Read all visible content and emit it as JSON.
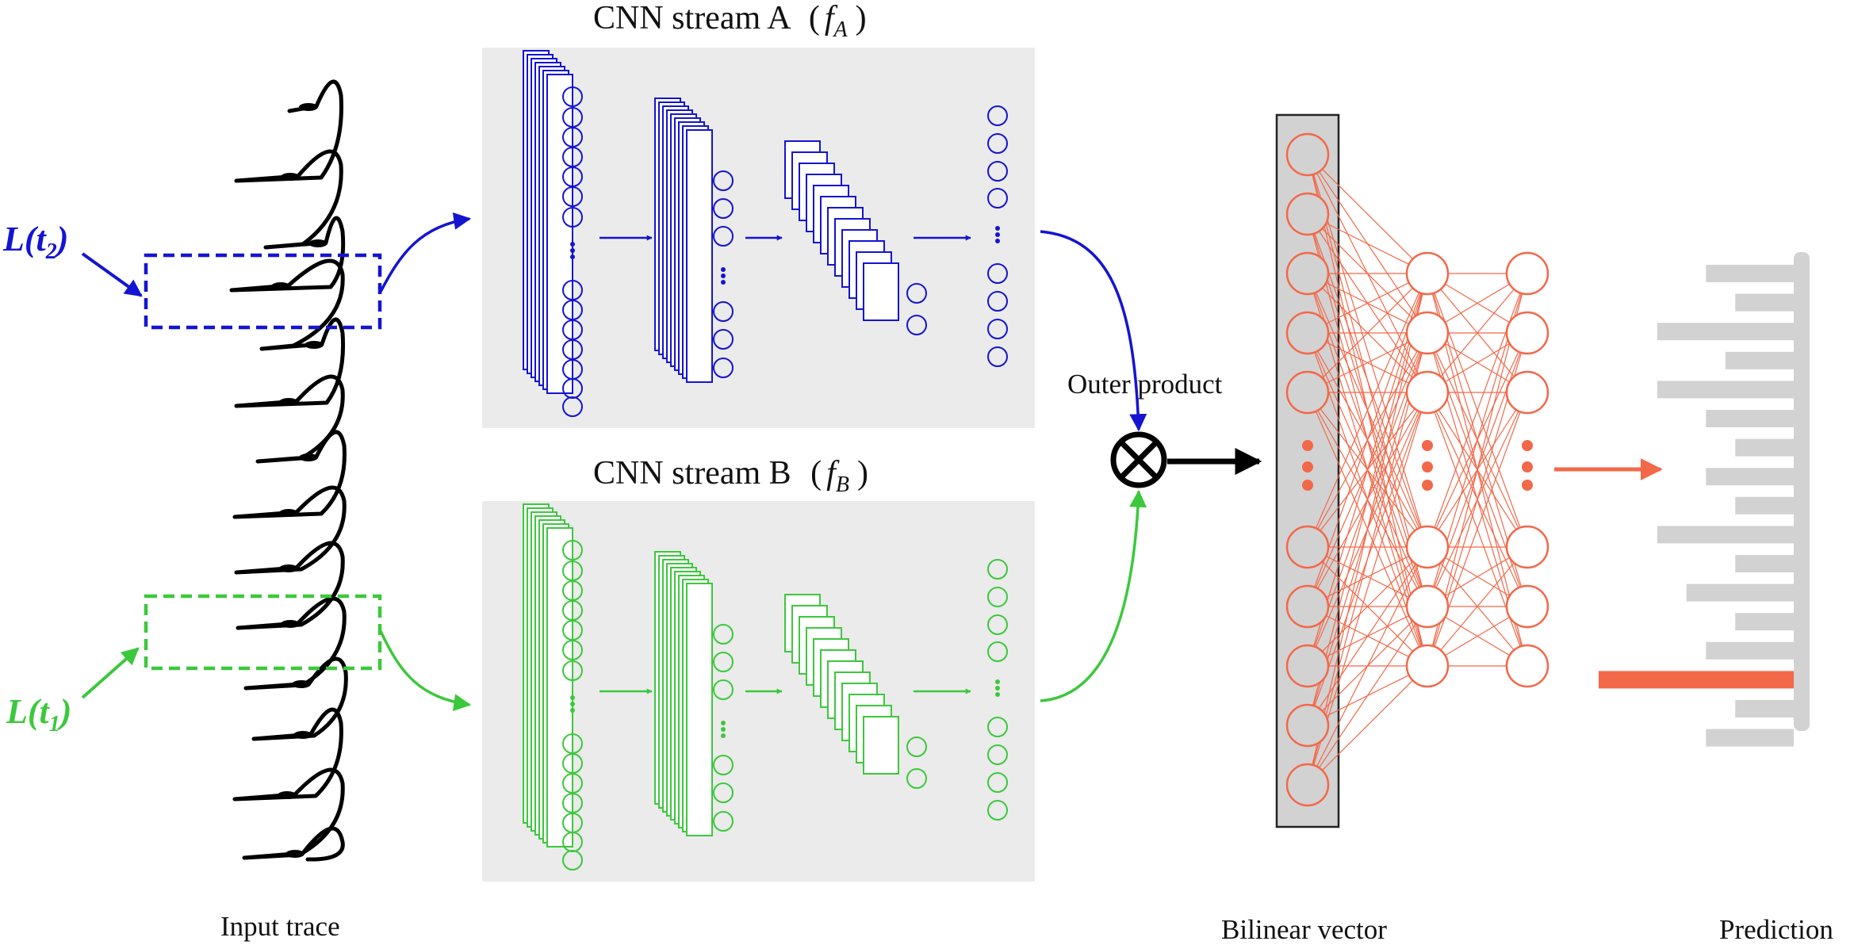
{
  "labels": {
    "stream_a": "CNN stream A",
    "stream_a_fn": "f",
    "stream_a_sub": "A",
    "stream_b": "CNN stream B",
    "stream_b_fn": "f",
    "stream_b_sub": "B",
    "outer_product": "Outer product",
    "input_trace": "Input trace",
    "bilinear_vector": "Bilinear vector",
    "prediction": "Prediction",
    "lt2_main": "L(t",
    "lt2_sub": "2",
    "lt2_close": ")",
    "lt1_main": "L(t",
    "lt1_sub": "1",
    "lt1_close": ")"
  },
  "colors": {
    "stream_a": "#1414d2",
    "stream_b": "#3cc83c",
    "dense_net": "#f26849",
    "panel_bg": "#ebebeb",
    "bilinear_bg": "#d2d2d2",
    "prediction_gray": "#d2d2d2",
    "trace": "#000000"
  },
  "prediction_bars": {
    "values": [
      0.45,
      0.3,
      0.7,
      0.35,
      0.7,
      0.45,
      0.3,
      0.45,
      0.3,
      0.7,
      0.3,
      0.55,
      0.3,
      0.45,
      1.0,
      0.3,
      0.45
    ],
    "highlight_index": 14
  },
  "icons": [
    "outer-product-icon"
  ]
}
